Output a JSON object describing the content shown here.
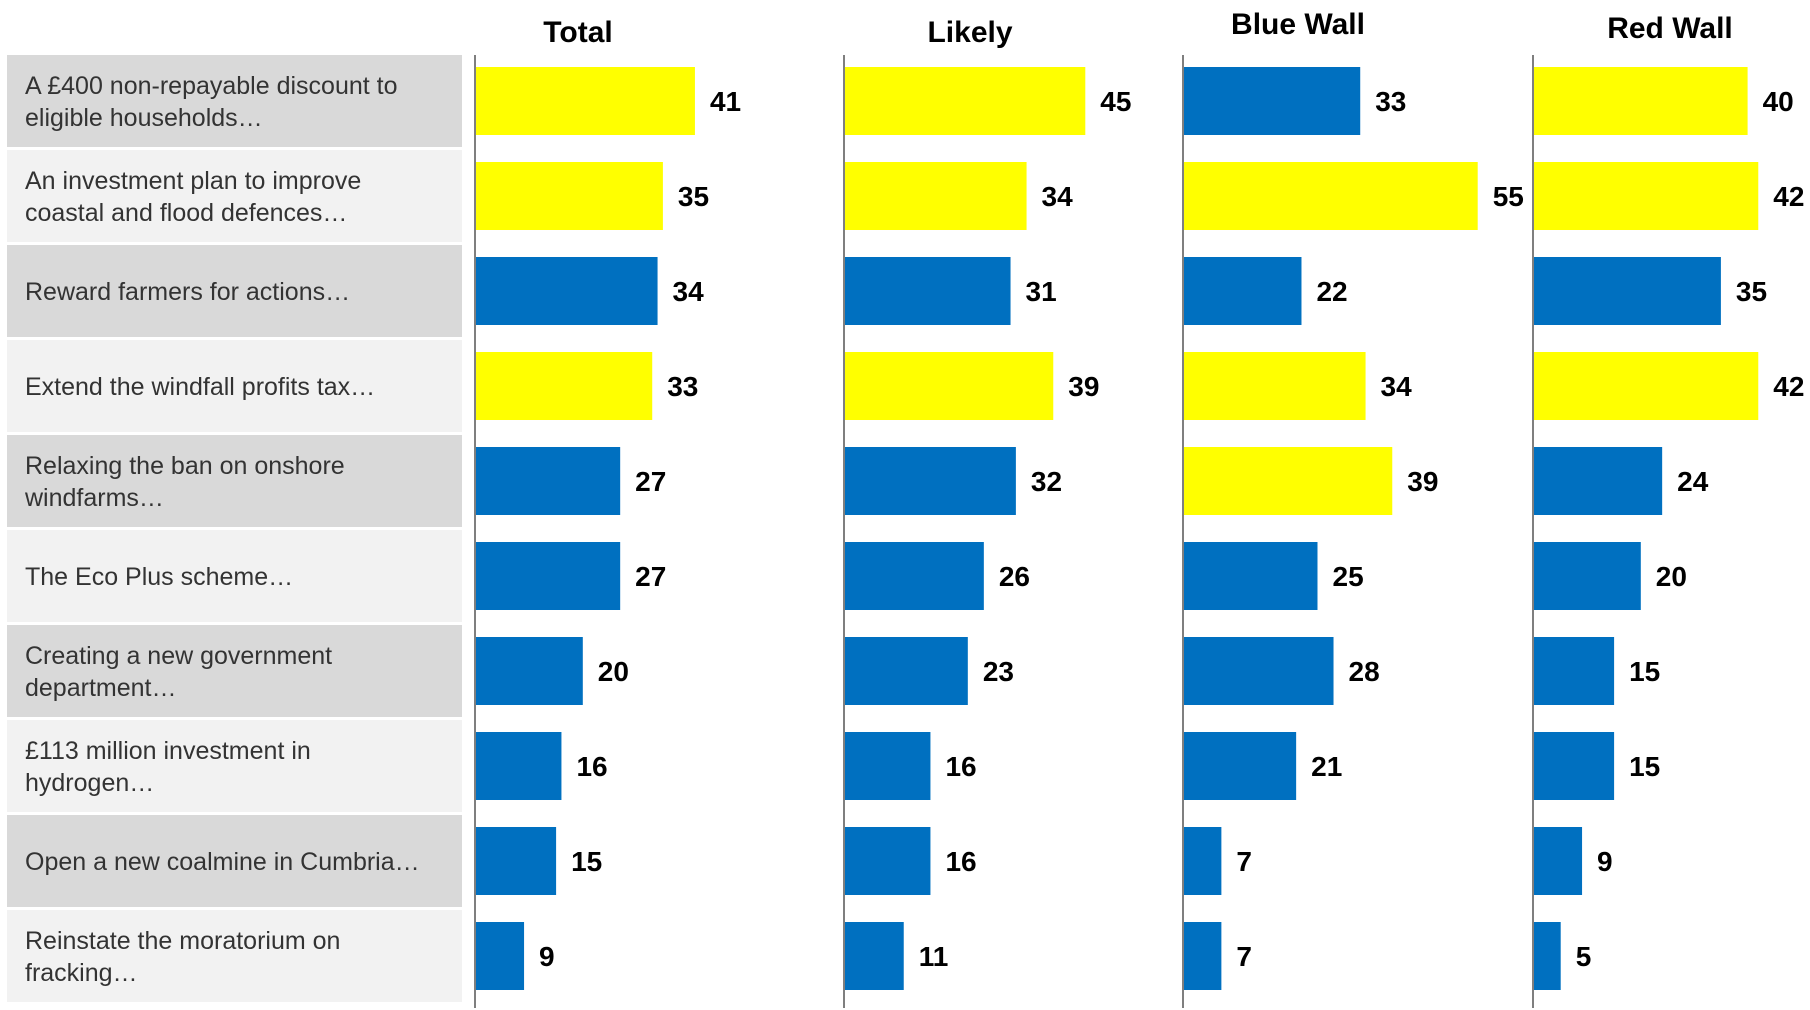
{
  "chart_data": {
    "type": "bar",
    "orientation": "horizontal",
    "categories": [
      [
        "A £400 non-repayable discount to",
        "eligible households…"
      ],
      [
        "An investment plan to improve",
        "coastal and flood defences…"
      ],
      [
        "Reward farmers for actions…"
      ],
      [
        "Extend the windfall profits tax…"
      ],
      [
        "Relaxing the ban on onshore",
        "windfarms…"
      ],
      [
        "The Eco Plus scheme…"
      ],
      [
        "Creating a new government",
        "department…"
      ],
      [
        "£113 million investment in",
        "hydrogen…"
      ],
      [
        "Open a new coalmine in Cumbria…"
      ],
      [
        "Reinstate the moratorium on",
        "fracking…"
      ]
    ],
    "panels": [
      {
        "title": "Total",
        "values": [
          41,
          35,
          34,
          33,
          27,
          27,
          20,
          16,
          15,
          9
        ],
        "highlighted": [
          true,
          true,
          false,
          true,
          false,
          false,
          false,
          false,
          false,
          false
        ]
      },
      {
        "title": "Likely",
        "values": [
          45,
          34,
          31,
          39,
          32,
          26,
          23,
          16,
          16,
          11
        ],
        "highlighted": [
          true,
          true,
          false,
          true,
          false,
          false,
          false,
          false,
          false,
          false
        ]
      },
      {
        "title": "Blue Wall",
        "values": [
          33,
          55,
          22,
          34,
          39,
          25,
          28,
          21,
          7,
          7
        ],
        "highlighted": [
          false,
          true,
          false,
          true,
          true,
          false,
          false,
          false,
          false,
          false
        ]
      },
      {
        "title": "Red Wall",
        "values": [
          40,
          42,
          35,
          42,
          24,
          20,
          15,
          15,
          9,
          5
        ],
        "highlighted": [
          true,
          true,
          false,
          true,
          false,
          false,
          false,
          false,
          false,
          false
        ]
      }
    ],
    "colors": {
      "highlight": "#ffff00",
      "default": "#0070c0",
      "label_bg_dark": "#d9d9d9",
      "label_bg_light": "#f2f2f2",
      "axis_line": "#7f7f7f"
    }
  }
}
